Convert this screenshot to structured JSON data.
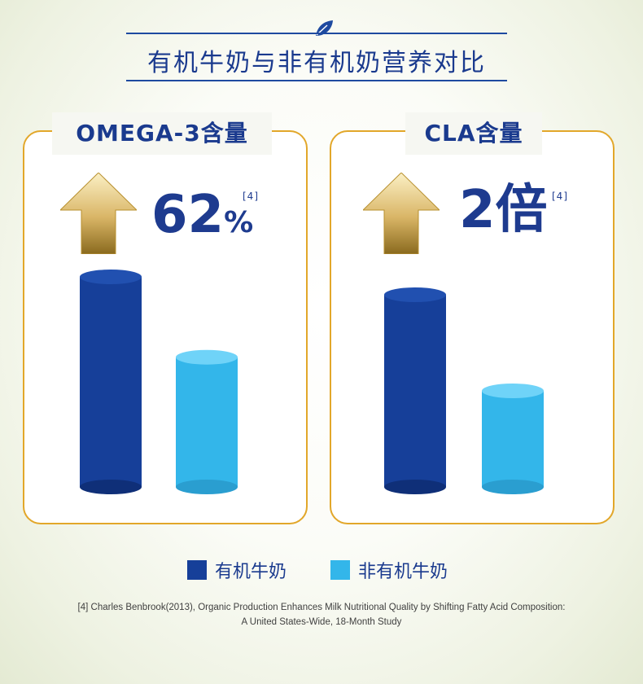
{
  "page": {
    "title": "有机牛奶与非有机奶营养对比",
    "footnote_line1": "[4] Charles Benbrook(2013), Organic Production Enhances Milk Nutritional Quality by Shifting Fatty Acid Composition:",
    "footnote_line2": "A United States-Wide, 18-Month Study"
  },
  "colors": {
    "organic": "#163f99",
    "non_organic": "#33b6ea",
    "accent_gold": "#e2a72a",
    "text_blue": "#1a3a8e"
  },
  "icons": {
    "title": "leaf-icon",
    "increase": "up-arrow-icon"
  },
  "legend": [
    {
      "label": "有机牛奶",
      "color": "#163f99"
    },
    {
      "label": "非有机牛奶",
      "color": "#33b6ea"
    }
  ],
  "chart_data": [
    {
      "type": "bar",
      "title": "OMEGA-3含量",
      "headline_value": "62",
      "headline_unit": "%",
      "reference": "[4]",
      "categories": [
        "有机牛奶",
        "非有机牛奶"
      ],
      "values": [
        1.62,
        1.0
      ],
      "ylim": [
        0,
        1.62
      ]
    },
    {
      "type": "bar",
      "title": "CLA含量",
      "headline_value": "2",
      "headline_unit": "倍",
      "reference": "[4]",
      "categories": [
        "有机牛奶",
        "非有机牛奶"
      ],
      "values": [
        2.0,
        1.0
      ],
      "ylim": [
        0,
        2.0
      ]
    }
  ]
}
